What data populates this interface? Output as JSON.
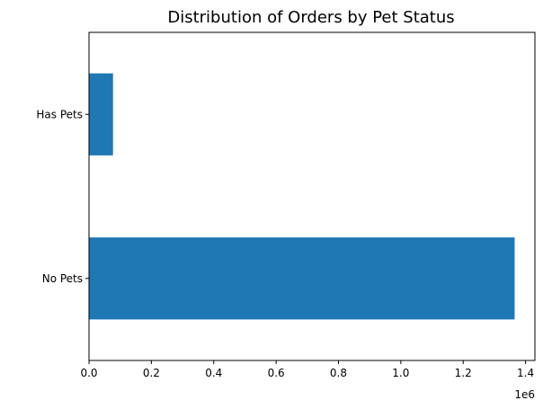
{
  "chart_data": {
    "type": "bar",
    "orientation": "horizontal",
    "title": "Distribution of Orders by Pet Status",
    "xlabel": "",
    "ylabel": "",
    "categories": [
      "No Pets",
      "Has Pets"
    ],
    "values": [
      1365000,
      77000
    ],
    "xlim": [
      0,
      1430000
    ],
    "x_ticks": [
      0,
      200000,
      400000,
      600000,
      800000,
      1000000,
      1200000,
      1400000
    ],
    "x_tick_labels": [
      "0.0",
      "0.2",
      "0.4",
      "0.6",
      "0.8",
      "1.0",
      "1.2",
      "1.4"
    ],
    "x_offset_label": "1e6",
    "grid": false,
    "bar_color": "#1f77b4"
  }
}
